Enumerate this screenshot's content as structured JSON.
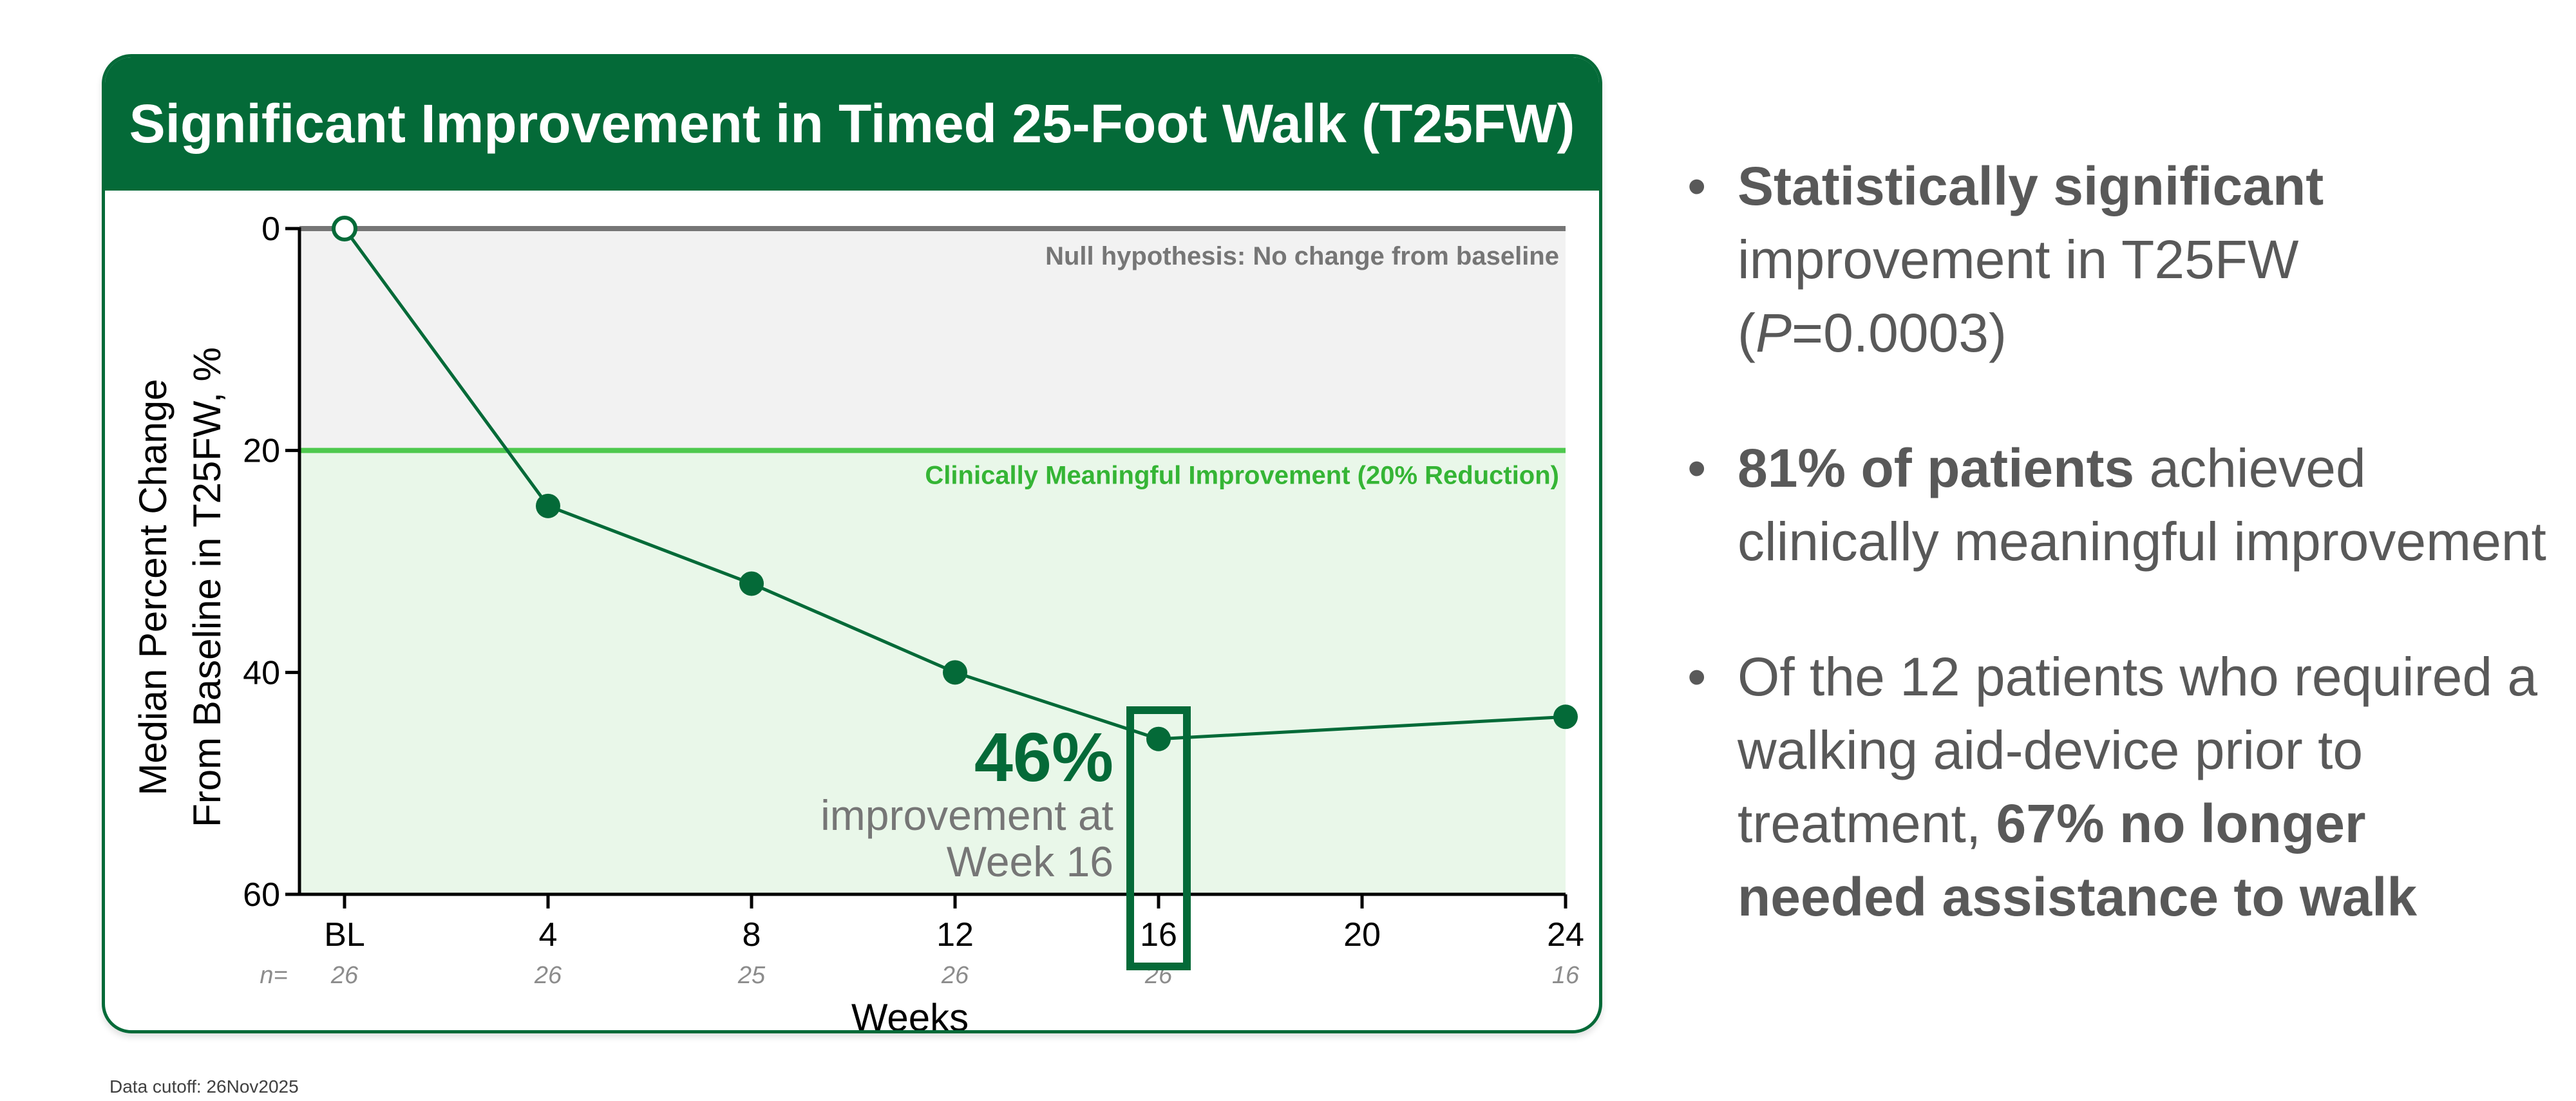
{
  "chart_title": "Significant Improvement in Timed 25-Foot Walk (T25FW)",
  "chart_data": {
    "type": "line",
    "ylabel": [
      "Median Percent Change",
      "From Baseline in T25FW, %"
    ],
    "xlabel": "Weeks",
    "ylim": [
      0,
      60
    ],
    "y_inverted": true,
    "y_ticks": [
      0,
      20,
      40,
      60
    ],
    "x_ticks": [
      {
        "label": "BL",
        "x": 0
      },
      {
        "label": "4",
        "x": 4
      },
      {
        "label": "8",
        "x": 8
      },
      {
        "label": "12",
        "x": 12
      },
      {
        "label": "16",
        "x": 16
      },
      {
        "label": "20",
        "x": 20
      },
      {
        "label": "24",
        "x": 24
      }
    ],
    "n_label": "n=",
    "n_values": [
      {
        "x": 0,
        "n": "26"
      },
      {
        "x": 4,
        "n": "26"
      },
      {
        "x": 8,
        "n": "25"
      },
      {
        "x": 12,
        "n": "26"
      },
      {
        "x": 16,
        "n": "26"
      },
      {
        "x": 24,
        "n": "16"
      }
    ],
    "series": [
      {
        "points": [
          {
            "x": 0,
            "y": 0
          },
          {
            "x": 4,
            "y": 25
          },
          {
            "x": 8,
            "y": 32
          },
          {
            "x": 12,
            "y": 40
          },
          {
            "x": 16,
            "y": 46
          },
          {
            "x": 24,
            "y": 44
          }
        ]
      }
    ],
    "reference_lines": [
      {
        "y": 0,
        "label": "Null hypothesis:  No change from baseline",
        "color": "#767676"
      },
      {
        "y": 20,
        "label": "Clinically Meaningful Improvement (20% Reduction)",
        "color": "#4ec94e"
      }
    ],
    "highlight": {
      "x": 16,
      "value_label": "46%",
      "text": [
        "improvement at",
        "Week 16"
      ]
    },
    "colors": {
      "line": "#046a38",
      "null_region": "#f2f2f2",
      "improve_region": "#e9f7e9",
      "null_line": "#767676",
      "cmi_line": "#4ec94e"
    }
  },
  "bullets": [
    [
      {
        "t": "Statistically significant",
        "b": true
      },
      {
        "t": " improvement in T25FW (",
        "b": false
      },
      {
        "t": "P",
        "i": true
      },
      {
        "t": "=0.0003)",
        "b": false
      }
    ],
    [
      {
        "t": "81% of patients",
        "b": true
      },
      {
        "t": " achieved clinically meaningful improvement",
        "b": false
      }
    ],
    [
      {
        "t": "Of the 12 patients who required a walking aid-device prior to treatment, ",
        "b": false
      },
      {
        "t": "67% no longer needed assistance to walk",
        "b": true
      }
    ]
  ],
  "footnote": "Data cutoff: 26Nov2025"
}
